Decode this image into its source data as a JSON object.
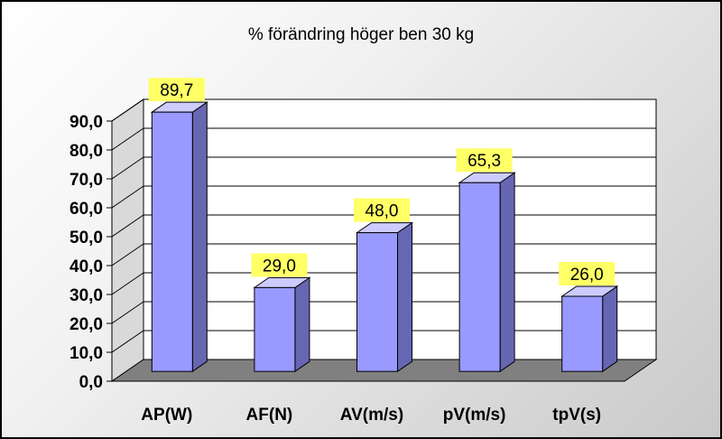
{
  "chart_data": {
    "type": "bar",
    "title": "% förändring höger ben 30 kg",
    "xlabel": "",
    "ylabel": "",
    "categories": [
      "AP(W)",
      "AF(N)",
      "AV(m/s)",
      "pV(m/s)",
      "tpV(s)"
    ],
    "values": [
      89.7,
      29.0,
      48.0,
      65.3,
      26.0
    ],
    "value_labels": [
      "89,7",
      "29,0",
      "48,0",
      "65,3",
      "26,0"
    ],
    "ylim": [
      0,
      90
    ],
    "yticks": [
      "0,0",
      "10,0",
      "20,0",
      "30,0",
      "40,0",
      "50,0",
      "60,0",
      "70,0",
      "80,0",
      "90,0"
    ],
    "grid": true,
    "legend": "none",
    "style": "3d-column"
  },
  "colors": {
    "bar_front": "#9999ff",
    "bar_top": "#ccccff",
    "bar_side": "#6666b3",
    "label_bg": "#ffff66",
    "floor": "#808080",
    "wall": "#ffffff",
    "side_wall": "#d9d9d9"
  }
}
